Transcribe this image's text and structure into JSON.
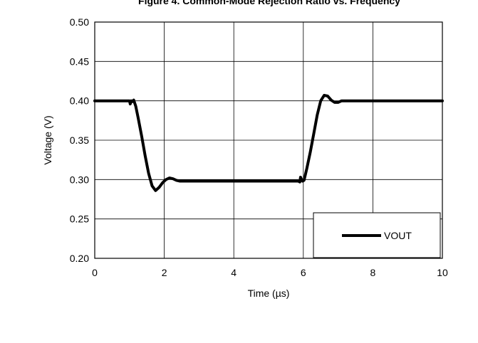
{
  "chart_data": {
    "type": "line",
    "title": "Figure 4. Common-Mode Rejection Ratio vs. Frequency",
    "xlabel": "Time (µs)",
    "ylabel": "Voltage (V)",
    "xlim": [
      0,
      10
    ],
    "ylim": [
      0.2,
      0.5
    ],
    "x_ticks": [
      0,
      2,
      4,
      6,
      8,
      10
    ],
    "x_tick_labels": [
      "0",
      "2",
      "4",
      "6",
      "8",
      "10"
    ],
    "y_ticks": [
      0.2,
      0.25,
      0.3,
      0.35,
      0.4,
      0.45,
      0.5
    ],
    "y_tick_labels": [
      "0.20",
      "0.25",
      "0.30",
      "0.35",
      "0.40",
      "0.45",
      "0.50"
    ],
    "grid": true,
    "legend_position": "bottom-right",
    "series": [
      {
        "name": "VOUT",
        "color": "#000000",
        "x": [
          0,
          0.5,
          1.0,
          1.02,
          1.05,
          1.08,
          1.12,
          1.18,
          1.25,
          1.35,
          1.45,
          1.55,
          1.65,
          1.75,
          1.85,
          1.95,
          2.05,
          2.15,
          2.25,
          2.35,
          2.45,
          2.6,
          2.8,
          3.0,
          3.5,
          4.0,
          4.5,
          5.0,
          5.5,
          5.85,
          5.9,
          5.92,
          5.95,
          5.98,
          6.02,
          6.1,
          6.2,
          6.3,
          6.4,
          6.5,
          6.6,
          6.7,
          6.8,
          6.9,
          7.0,
          7.1,
          7.2,
          7.35,
          7.5,
          8.0,
          9.0,
          10.0
        ],
        "values": [
          0.4,
          0.4,
          0.4,
          0.396,
          0.4,
          0.399,
          0.401,
          0.393,
          0.378,
          0.355,
          0.33,
          0.308,
          0.292,
          0.286,
          0.29,
          0.296,
          0.3,
          0.302,
          0.301,
          0.299,
          0.298,
          0.298,
          0.298,
          0.298,
          0.298,
          0.298,
          0.298,
          0.298,
          0.298,
          0.298,
          0.297,
          0.303,
          0.3,
          0.298,
          0.299,
          0.314,
          0.335,
          0.358,
          0.382,
          0.4,
          0.407,
          0.406,
          0.401,
          0.398,
          0.398,
          0.4,
          0.4,
          0.4,
          0.4,
          0.4,
          0.4,
          0.4
        ]
      }
    ]
  }
}
